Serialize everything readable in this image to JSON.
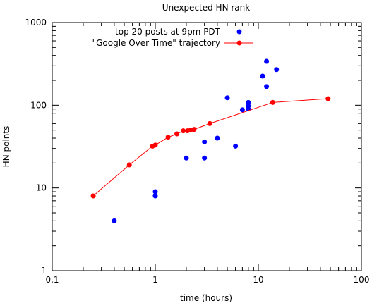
{
  "chart_data": {
    "type": "scatter",
    "title": "Unexpected HN rank",
    "xlabel": "time (hours)",
    "ylabel": "HN points",
    "xscale": "log",
    "yscale": "log",
    "xlim": [
      0.1,
      100
    ],
    "ylim": [
      1,
      1000
    ],
    "xticks": [
      {
        "value": 0.1,
        "label": "0.1"
      },
      {
        "value": 1,
        "label": "1"
      },
      {
        "value": 10,
        "label": "10"
      },
      {
        "value": 100,
        "label": "100"
      }
    ],
    "yticks": [
      {
        "value": 1,
        "label": "1"
      },
      {
        "value": 10,
        "label": "10"
      },
      {
        "value": 100,
        "label": "100"
      },
      {
        "value": 1000,
        "label": "1000"
      }
    ],
    "grid": false,
    "legend_position": "top-right",
    "series": [
      {
        "name": "top 20 posts at 9pm PDT",
        "style": "points",
        "color": "#0000ff",
        "x": [
          0.4,
          1.0,
          1.0,
          2.0,
          3.0,
          3.0,
          4.0,
          5.0,
          6.0,
          7.0,
          8.0,
          8.0,
          8.0,
          11.0,
          12.0,
          12.0,
          15.0
        ],
        "y": [
          4,
          8,
          9,
          23,
          23,
          36,
          40,
          123,
          32,
          88,
          90,
          98,
          108,
          225,
          340,
          168,
          270
        ]
      },
      {
        "name": "\"Google Over Time\" trajectory",
        "style": "linespoints",
        "color": "#ff0000",
        "x": [
          0.25,
          0.56,
          0.94,
          1.0,
          1.33,
          1.62,
          1.87,
          2.05,
          2.2,
          2.38,
          3.38,
          13.8,
          47.5
        ],
        "y": [
          8,
          19,
          32,
          33,
          41,
          45,
          49,
          49,
          50,
          51,
          60,
          108,
          120
        ]
      }
    ]
  }
}
